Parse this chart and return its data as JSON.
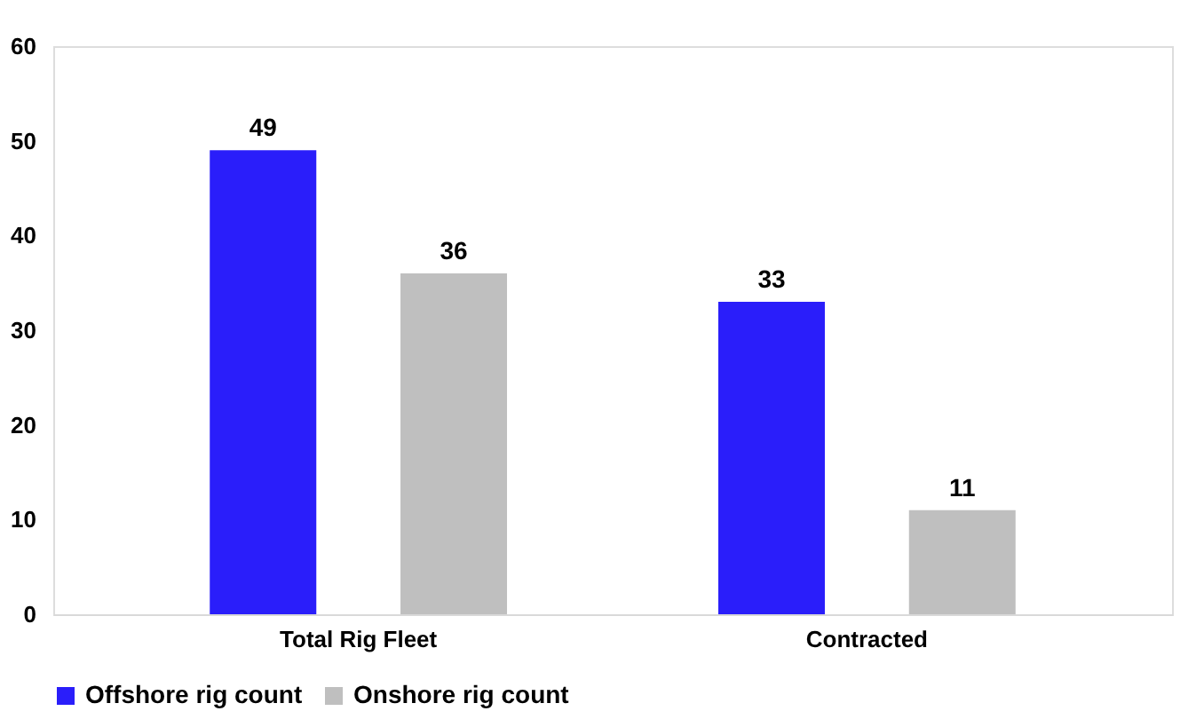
{
  "chart_data": {
    "type": "bar",
    "categories": [
      "Total Rig Fleet",
      "Contracted"
    ],
    "series": [
      {
        "name": "Offshore rig count",
        "color": "#2a1efa",
        "values": [
          49,
          33
        ]
      },
      {
        "name": "Onshore rig count",
        "color": "#bfbfbf",
        "values": [
          36,
          11
        ]
      }
    ],
    "ylim": [
      0,
      60
    ],
    "yticks": [
      0,
      10,
      20,
      30,
      40,
      50,
      60
    ],
    "grid": false,
    "legend": "bottom",
    "data_labels": true
  }
}
